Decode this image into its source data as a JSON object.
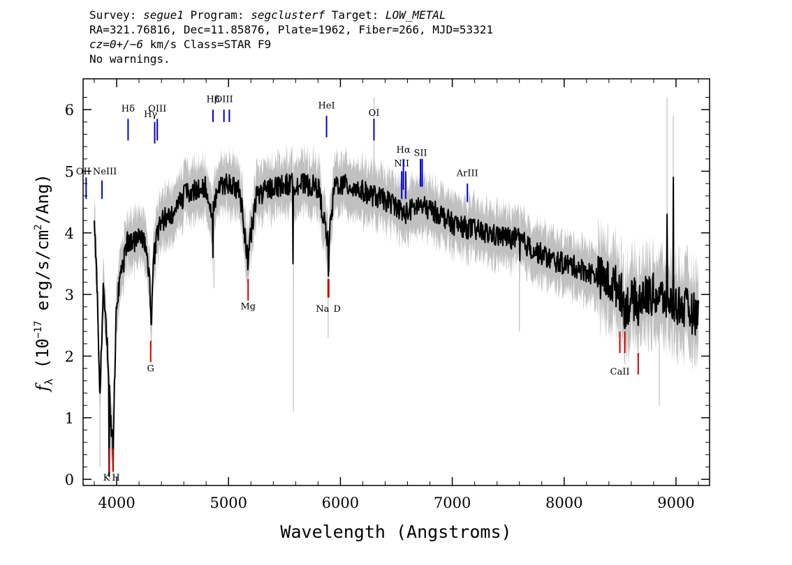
{
  "header": {
    "line1": [
      {
        "t": "Survey: "
      },
      {
        "t": "segue1",
        "i": true
      },
      {
        "t": " Program: "
      },
      {
        "t": "segclusterf",
        "i": true
      },
      {
        "t": " Target: "
      },
      {
        "t": "LOW_METAL",
        "i": true
      }
    ],
    "line2": [
      {
        "t": "RA=321.76816, Dec=11.85876, Plate=1962, Fiber=266, MJD=53321"
      }
    ],
    "line3": [
      {
        "t": "cz=0+/−6",
        "i": true
      },
      {
        "t": " km/s Class=STAR F9"
      }
    ],
    "line4": [
      {
        "t": "No warnings."
      }
    ]
  },
  "chart_data": {
    "type": "line",
    "xlabel": "Wavelength (Angstroms)",
    "ylabel": "fλ (10⁻¹⁷ erg/s/cm²/Ang)",
    "xlim": [
      3700,
      9300
    ],
    "ylim": [
      -0.1,
      6.5
    ],
    "xticks": [
      4000,
      5000,
      6000,
      7000,
      8000,
      9000
    ],
    "yticks": [
      0,
      1,
      2,
      3,
      4,
      5,
      6
    ],
    "grid": false,
    "colors": {
      "flux": "#000000",
      "error": "#c0c0c0",
      "emission": "#0000cc",
      "absorption": "#cc0000"
    },
    "flux_anchors": [
      [
        3800,
        4.2
      ],
      [
        3830,
        2.8
      ],
      [
        3850,
        1.3
      ],
      [
        3880,
        3.1
      ],
      [
        3905,
        2.5
      ],
      [
        3925,
        1.8
      ],
      [
        3945,
        1.0
      ],
      [
        3955,
        0.6
      ],
      [
        3970,
        0.7
      ],
      [
        3985,
        1.9
      ],
      [
        4000,
        2.9
      ],
      [
        4040,
        3.3
      ],
      [
        4100,
        3.9
      ],
      [
        4140,
        3.8
      ],
      [
        4200,
        4.0
      ],
      [
        4250,
        3.8
      ],
      [
        4290,
        3.4
      ],
      [
        4310,
        2.5
      ],
      [
        4330,
        3.7
      ],
      [
        4400,
        4.2
      ],
      [
        4500,
        4.3
      ],
      [
        4600,
        4.6
      ],
      [
        4700,
        4.7
      ],
      [
        4800,
        4.75
      ],
      [
        4860,
        4.3
      ],
      [
        4900,
        4.75
      ],
      [
        5000,
        4.8
      ],
      [
        5100,
        4.7
      ],
      [
        5170,
        3.6
      ],
      [
        5250,
        4.6
      ],
      [
        5400,
        4.75
      ],
      [
        5600,
        4.8
      ],
      [
        5800,
        4.75
      ],
      [
        5893,
        3.8
      ],
      [
        5950,
        4.8
      ],
      [
        6100,
        4.75
      ],
      [
        6300,
        4.6
      ],
      [
        6500,
        4.45
      ],
      [
        6563,
        4.3
      ],
      [
        6700,
        4.45
      ],
      [
        6900,
        4.3
      ],
      [
        7000,
        4.15
      ],
      [
        7200,
        4.05
      ],
      [
        7400,
        3.95
      ],
      [
        7600,
        3.9
      ],
      [
        7700,
        3.75
      ],
      [
        7900,
        3.55
      ],
      [
        8100,
        3.45
      ],
      [
        8300,
        3.3
      ],
      [
        8500,
        3.1
      ],
      [
        8540,
        2.8
      ],
      [
        8650,
        2.95
      ],
      [
        8800,
        3.0
      ],
      [
        9000,
        2.85
      ],
      [
        9200,
        2.65
      ]
    ],
    "flux_spikes": [
      [
        3932,
        0.05
      ],
      [
        3968,
        0.15
      ],
      [
        4102,
        3.7
      ],
      [
        4340,
        3.5
      ],
      [
        4860,
        3.6
      ],
      [
        5172,
        3.4
      ],
      [
        5577,
        3.5
      ],
      [
        5892,
        3.3
      ],
      [
        5896,
        3.4
      ],
      [
        7605,
        3.55
      ],
      [
        8498,
        2.75
      ],
      [
        8542,
        2.45
      ],
      [
        8662,
        2.5
      ],
      [
        8920,
        4.3
      ],
      [
        8975,
        4.9
      ]
    ],
    "error_spikes": [
      [
        3850,
        0.2
      ],
      [
        3940,
        0.0
      ],
      [
        4870,
        3.1
      ],
      [
        5580,
        1.1
      ],
      [
        5890,
        2.3
      ],
      [
        6300,
        6.2
      ],
      [
        7600,
        2.4
      ],
      [
        8380,
        2.6
      ],
      [
        8850,
        1.2
      ],
      [
        8920,
        6.2
      ],
      [
        8975,
        5.9
      ],
      [
        9100,
        3.8
      ]
    ],
    "lines": [
      {
        "label": "OII",
        "x": 3727,
        "kind": "emission",
        "y1": 4.55,
        "y2": 4.9,
        "ly": 4.95
      },
      {
        "label": "NeIII",
        "x": 3869,
        "kind": "emission",
        "y1": 4.55,
        "y2": 4.85,
        "ly": 4.95
      },
      {
        "label": "Hδ",
        "x": 4102,
        "kind": "emission",
        "y1": 5.5,
        "y2": 5.85,
        "ly": 5.97
      },
      {
        "label": "Hγ",
        "x": 4340,
        "kind": "emission",
        "y1": 5.45,
        "y2": 5.8,
        "ly": 5.88
      },
      {
        "label": "OIII",
        "x": 4363,
        "kind": "emission",
        "y1": 5.5,
        "y2": 5.85,
        "ly": 5.97
      },
      {
        "label": "Hβ",
        "x": 4861,
        "kind": "emission",
        "y1": 5.8,
        "y2": 6.0,
        "ly": 6.12
      },
      {
        "label": "OIII",
        "x": 4959,
        "kind": "emission",
        "y1": 5.8,
        "y2": 6.0,
        "ly": 6.12
      },
      {
        "label": "OIII",
        "x": 5007,
        "kind": "emission",
        "y1": 5.8,
        "y2": 6.0,
        "ly": 6.12
      },
      {
        "label": "HeI",
        "x": 5876,
        "kind": "emission",
        "y1": 5.55,
        "y2": 5.9,
        "ly": 6.02
      },
      {
        "label": "OI",
        "x": 6300,
        "kind": "emission",
        "y1": 5.5,
        "y2": 5.85,
        "ly": 5.9
      },
      {
        "label": "NII",
        "x": 6548,
        "kind": "emission",
        "y1": 4.55,
        "y2": 5.0,
        "ly": 5.08
      },
      {
        "label": "Hα",
        "x": 6563,
        "kind": "emission",
        "y1": 4.7,
        "y2": 5.2,
        "ly": 5.3
      },
      {
        "label": "NII",
        "x": 6583,
        "kind": "emission",
        "y1": 4.55,
        "y2": 5.0,
        "ly": 5.08
      },
      {
        "label": "SII",
        "x": 6716,
        "kind": "emission",
        "y1": 4.75,
        "y2": 5.2,
        "ly": 5.25
      },
      {
        "label": "SII",
        "x": 6731,
        "kind": "emission",
        "y1": 4.75,
        "y2": 5.2,
        "ly": 5.25
      },
      {
        "label": "ArIII",
        "x": 7135,
        "kind": "emission",
        "y1": 4.5,
        "y2": 4.8,
        "ly": 4.92
      },
      {
        "label": "K",
        "x": 3934,
        "kind": "absorption",
        "y1": 0.12,
        "y2": 0.5,
        "ly": -0.02
      },
      {
        "label": "H",
        "x": 3969,
        "kind": "absorption",
        "y1": 0.12,
        "y2": 0.5,
        "ly": -0.02
      },
      {
        "label": "G",
        "x": 4304,
        "kind": "absorption",
        "y1": 1.9,
        "y2": 2.25,
        "ly": 1.75
      },
      {
        "label": "Mg",
        "x": 5175,
        "kind": "absorption",
        "y1": 2.9,
        "y2": 3.25,
        "ly": 2.76
      },
      {
        "label": "Na",
        "x": 5890,
        "kind": "absorption",
        "y1": 2.95,
        "y2": 3.25,
        "ly": 2.72
      },
      {
        "label": "D",
        "x": 5896,
        "kind": "absorption",
        "y1": 2.95,
        "y2": 3.25,
        "ly": 2.72
      },
      {
        "label": "CaII",
        "x": 8498,
        "kind": "absorption",
        "y1": 2.05,
        "y2": 2.4,
        "ly": 1.7
      },
      {
        "label": "CaII",
        "x": 8542,
        "kind": "absorption",
        "y1": 2.05,
        "y2": 2.4,
        "ly": 1.7
      },
      {
        "label": "CaII",
        "x": 8662,
        "kind": "absorption",
        "y1": 1.7,
        "y2": 2.05,
        "ly": 1.7
      }
    ]
  }
}
